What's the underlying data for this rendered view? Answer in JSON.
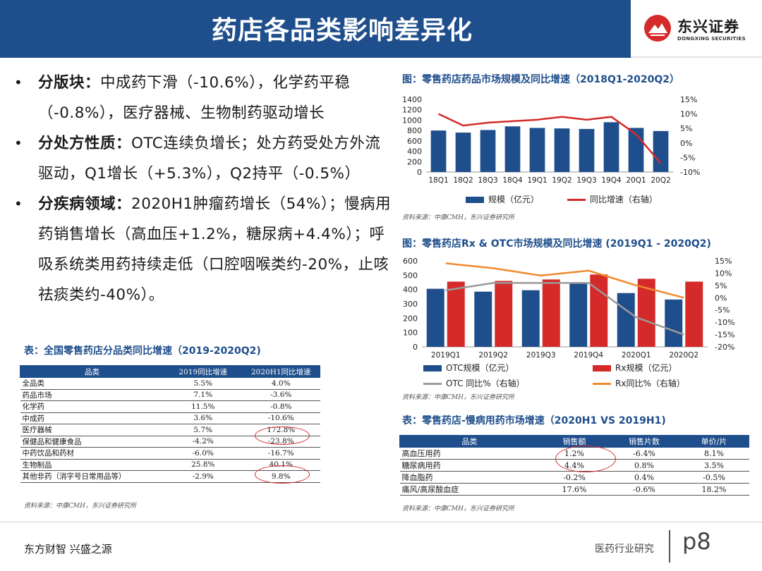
{
  "header": {
    "title": "药店各品类影响差异化",
    "logo_cn": "东兴证券",
    "logo_en": "DONGXING SECURITIES",
    "brand_color": "#1f4e8c",
    "logo_color": "#d42a2a"
  },
  "bullets": [
    {
      "label": "分版块：",
      "text": "中成药下滑（-10.6%），化学药平稳（-0.8%），医疗器械、生物制药驱动增长"
    },
    {
      "label": "分处方性质：",
      "text": "OTC连续负增长；处方药受处方外流驱动，Q1增长（+5.3%），Q2持平（-0.5%）"
    },
    {
      "label": "分疾病领域：",
      "text": "2020H1肿瘤药增长（54%）；慢病用药销售增长（高血压+1.2%，糖尿病+4.4%）；呼吸系统类用药持续走低（口腔咽喉类约-20%，止咳祛痰类约-40%）。"
    }
  ],
  "table1": {
    "caption": "表：全国零售药店分品类同比增速（2019-2020Q2)",
    "headers": [
      "品类",
      "2019同比增速",
      "2020H1同比增速"
    ],
    "rows": [
      [
        "全品类",
        "5.5%",
        "4.0%"
      ],
      [
        "药品市场",
        "7.1%",
        "-3.6%"
      ],
      [
        "化学药",
        "11.5%",
        "-0.8%"
      ],
      [
        "中成药",
        "3.6%",
        "-10.6%"
      ],
      [
        "医疗器械",
        "5.7%",
        "172.8%"
      ],
      [
        "保健品和健康食品",
        "-4.2%",
        "-23.8%"
      ],
      [
        "中药饮品和药材",
        "-6.0%",
        "-16.7%"
      ],
      [
        "生物制品",
        "25.8%",
        "40.1%"
      ],
      [
        "其他非药（消字号日常用品等）",
        "-2.9%",
        "9.8%"
      ]
    ],
    "source": "资料来源：中康CMH，东兴证券研究所"
  },
  "chart1": {
    "caption": "图：零售药店药品市场规模及同比增速（2018Q1-2020Q2）",
    "source": "资料来源：中康CMH，东兴证券研究所",
    "legend": [
      "规模（亿元）",
      "同比增速（右轴）"
    ]
  },
  "chart2": {
    "caption": "图：零售药店Rx & OTC市场规模及同比增速 (2019Q1 - 2020Q2)",
    "source": "资料来源：中康CMH，东兴证券研究所",
    "legend": [
      "OTC规模（亿元）",
      "Rx规模（亿元）",
      "OTC 同比%（右轴）",
      "Rx同比%（右轴）"
    ]
  },
  "table2": {
    "caption": "表：零售药店-慢病用药市场增速（2020H1 VS 2019H1)",
    "headers": [
      "品类",
      "销售额",
      "销售片数",
      "单价/片"
    ],
    "rows": [
      [
        "高血压用药",
        "1.2%",
        "-6.4%",
        "8.1%"
      ],
      [
        "糖尿病用药",
        "4.4%",
        "0.8%",
        "3.5%"
      ],
      [
        "降血脂药",
        "-0.2%",
        "0.4%",
        "-0.5%"
      ],
      [
        "痛风/高尿酸血症",
        "17.6%",
        "-0.6%",
        "18.2%"
      ]
    ],
    "source": "资料来源：中康CMH，东兴证券研究所"
  },
  "footer": {
    "left": "东方财智 兴盛之源",
    "right": "医药行业研究",
    "page": "p8"
  },
  "chart_data": [
    {
      "type": "bar",
      "title": "零售药店药品市场规模及同比增速（2018Q1-2020Q2）",
      "categories": [
        "18Q1",
        "18Q2",
        "18Q3",
        "18Q4",
        "19Q1",
        "19Q2",
        "19Q3",
        "19Q4",
        "20Q1",
        "20Q2"
      ],
      "series": [
        {
          "name": "规模（亿元）",
          "type": "bar",
          "axis": "left",
          "color": "#1f4e8c",
          "values": [
            800,
            760,
            810,
            880,
            850,
            840,
            830,
            960,
            850,
            790
          ]
        },
        {
          "name": "同比增速（右轴）",
          "type": "line",
          "axis": "right",
          "color": "#d42a2a",
          "values": [
            10,
            6,
            7,
            7.5,
            8,
            9,
            8,
            9,
            3,
            -7
          ]
        }
      ],
      "ylim": [
        0,
        1400
      ],
      "yticks": [
        0,
        200,
        400,
        600,
        800,
        1000,
        1200,
        1400
      ],
      "y2lim": [
        -10,
        15
      ],
      "y2ticks": [
        "15%",
        "10%",
        "5%",
        "0%",
        "-5%",
        "-10%"
      ]
    },
    {
      "type": "bar",
      "title": "零售药店Rx & OTC市场规模及同比增速 (2019Q1 - 2020Q2)",
      "categories": [
        "2019Q1",
        "2019Q2",
        "2019Q3",
        "2019Q4",
        "2020Q1",
        "2020Q2"
      ],
      "series": [
        {
          "name": "OTC规模（亿元）",
          "type": "bar",
          "axis": "left",
          "color": "#1f4e8c",
          "values": [
            405,
            385,
            395,
            445,
            375,
            330
          ]
        },
        {
          "name": "Rx规模（亿元）",
          "type": "bar",
          "axis": "left",
          "color": "#d42a2a",
          "values": [
            455,
            460,
            470,
            505,
            475,
            455
          ]
        },
        {
          "name": "OTC 同比%（右轴）",
          "type": "line",
          "axis": "right",
          "color": "#9a9a9a",
          "values": [
            3,
            6,
            6,
            6,
            -8,
            -15
          ]
        },
        {
          "name": "Rx同比%（右轴）",
          "type": "line",
          "axis": "right",
          "color": "#f08a2c",
          "values": [
            14,
            12,
            9,
            11,
            5,
            0
          ]
        }
      ],
      "ylim": [
        0,
        600
      ],
      "yticks": [
        0,
        100,
        200,
        300,
        400,
        500,
        600
      ],
      "y2lim": [
        -20,
        15
      ],
      "y2ticks": [
        "15%",
        "10%",
        "5%",
        "0%",
        "-5%",
        "-10%",
        "-15%",
        "-20%"
      ]
    }
  ]
}
